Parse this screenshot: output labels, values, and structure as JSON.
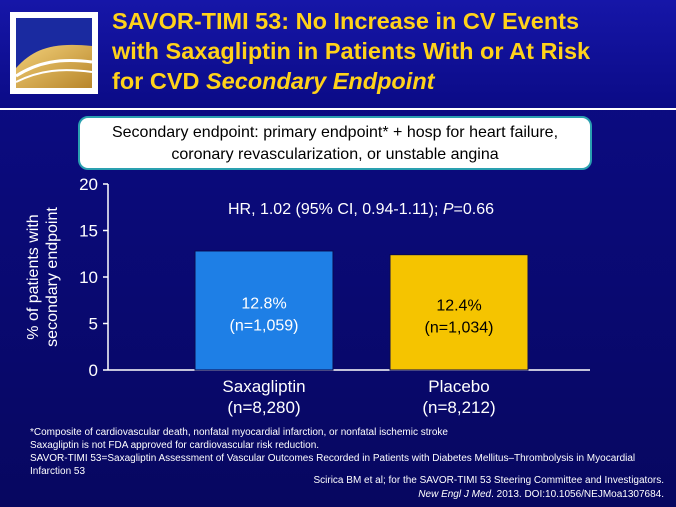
{
  "title": {
    "line1": "SAVOR-TIMI 53: No Increase in CV Events",
    "line2": "with Saxagliptin in Patients With or At Risk",
    "line3_plain": "for CVD ",
    "line3_italic": "Secondary Endpoint"
  },
  "callout": {
    "line1": "Secondary endpoint: primary endpoint* + hosp for heart failure,",
    "line2": "coronary revascularization, or unstable angina"
  },
  "chart_data": {
    "type": "bar",
    "categories": [
      "Saxagliptin",
      "Placebo"
    ],
    "category_sublabels": [
      "(n=8,280)",
      "(n=8,212)"
    ],
    "values": [
      12.8,
      12.4
    ],
    "data_labels": [
      "12.8%",
      "12.4%"
    ],
    "data_sublabels": [
      "(n=1,059)",
      "(n=1,034)"
    ],
    "bar_colors": [
      "#1e7fe6",
      "#f5c400"
    ],
    "ylabel_line1": "% of patients with",
    "ylabel_line2": "secondary endpoint",
    "ylim": [
      0,
      20
    ],
    "yticks": [
      0,
      5,
      10,
      15,
      20
    ],
    "annotation": {
      "prefix": "HR, 1.02 (95% CI, 0.94-1.11); ",
      "p_italic": "P",
      "suffix": "=0.66"
    },
    "grid": false
  },
  "footnotes": {
    "composite": "*Composite of cardiovascular death, nonfatal myocardial infarction, or nonfatal ischemic stroke",
    "fda": "Saxagliptin is not FDA approved for cardiovascular risk reduction.",
    "abbrev": "SAVOR-TIMI 53=Saxagliptin Assessment of Vascular Outcomes Recorded in Patients with Diabetes Mellitus–Thrombolysis in Myocardial Infarction 53"
  },
  "citation": {
    "line1": "Scirica BM et al; for the SAVOR-TIMI 53 Steering Committee and Investigators.",
    "journal": "New Engl J Med",
    "rest": ". 2013. DOI:10.1056/NEJMoa1307684."
  },
  "colors": {
    "background": "#0a0a78",
    "title": "#ffd21a",
    "saxagliptin_bar": "#1e7fe6",
    "placebo_bar": "#f5c400",
    "callout_border": "#2aa0b0"
  },
  "logo_icon": "curve-logo-icon"
}
